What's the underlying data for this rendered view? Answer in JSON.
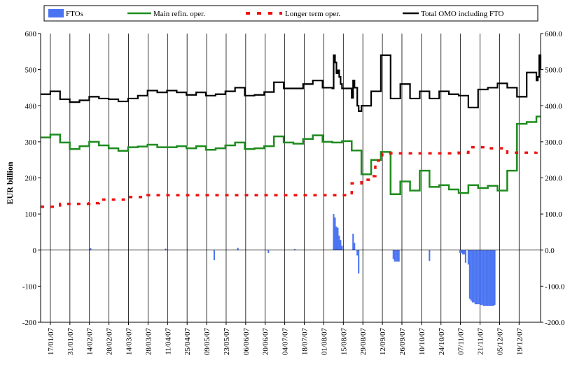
{
  "chart_data": {
    "type": "line",
    "ylabel": "EUR billion",
    "ylim": [
      -200,
      600
    ],
    "y_ticks_left": [
      "-200",
      "-100",
      "0",
      "100",
      "200",
      "300",
      "400",
      "500",
      "600"
    ],
    "y_ticks_right": [
      "-200.0",
      "-100.0",
      "0.0",
      "100.0",
      "200.0",
      "300.0",
      "400.0",
      "500.0",
      "600.0"
    ],
    "x_tick_labels": [
      "17/01/07",
      "31/01/07",
      "14/02/07",
      "28/02/07",
      "14/03/07",
      "28/03/07",
      "11/04/07",
      "25/04/07",
      "09/05/07",
      "23/05/07",
      "06/06/07",
      "20/06/07",
      "04/07/07",
      "18/07/07",
      "01/08/07",
      "15/08/07",
      "29/08/07",
      "12/09/07",
      "26/09/07",
      "10/10/07",
      "24/10/07",
      "07/11/07",
      "21/11/07",
      "05/12/07",
      "19/12/07"
    ],
    "grid": "vertical",
    "legend_position": "top",
    "colors": {
      "FTOs": "#4a74f2",
      "Main refin. oper.": "#1e8c1e",
      "Longer term oper.": "#ee1111",
      "Total OMO including FTO": "#000000"
    },
    "series": [
      {
        "name": "FTOs",
        "style": "bar",
        "points": [
          [
            36,
            5
          ],
          [
            90,
            4
          ],
          [
            125,
            -28
          ],
          [
            142,
            6
          ],
          [
            164,
            -8
          ],
          [
            183,
            3
          ],
          [
            211,
            100
          ],
          [
            212,
            90
          ],
          [
            213,
            65
          ],
          [
            214,
            62
          ],
          [
            215,
            40
          ],
          [
            216,
            28
          ],
          [
            217,
            12
          ],
          [
            225,
            45
          ],
          [
            226,
            20
          ],
          [
            228,
            -15
          ],
          [
            229,
            -65
          ],
          [
            254,
            -25
          ],
          [
            255,
            -32
          ],
          [
            256,
            -32
          ],
          [
            257,
            -32
          ],
          [
            258,
            -32
          ],
          [
            280,
            -30
          ],
          [
            302,
            -8
          ],
          [
            303,
            -8
          ],
          [
            304,
            -12
          ],
          [
            305,
            -12
          ],
          [
            306,
            -35
          ],
          [
            308,
            -40
          ],
          [
            309,
            -135
          ],
          [
            310,
            -140
          ],
          [
            311,
            -145
          ],
          [
            312,
            -145
          ],
          [
            313,
            -150
          ],
          [
            314,
            -150
          ],
          [
            315,
            -150
          ],
          [
            316,
            -150
          ],
          [
            317,
            -152
          ],
          [
            318,
            -152
          ],
          [
            319,
            -155
          ],
          [
            320,
            -155
          ],
          [
            321,
            -155
          ],
          [
            322,
            -155
          ],
          [
            323,
            -155
          ],
          [
            324,
            -155
          ],
          [
            325,
            -155
          ],
          [
            326,
            -155
          ],
          [
            327,
            -152
          ]
        ]
      },
      {
        "name": "Main refin. oper.",
        "style": "step",
        "points": [
          [
            0,
            312
          ],
          [
            7,
            320
          ],
          [
            14,
            298
          ],
          [
            21,
            280
          ],
          [
            28,
            288
          ],
          [
            35,
            300
          ],
          [
            42,
            290
          ],
          [
            49,
            282
          ],
          [
            56,
            275
          ],
          [
            63,
            285
          ],
          [
            70,
            287
          ],
          [
            77,
            292
          ],
          [
            84,
            285
          ],
          [
            91,
            285
          ],
          [
            98,
            288
          ],
          [
            105,
            282
          ],
          [
            112,
            288
          ],
          [
            119,
            278
          ],
          [
            126,
            282
          ],
          [
            133,
            290
          ],
          [
            140,
            298
          ],
          [
            147,
            280
          ],
          [
            154,
            282
          ],
          [
            161,
            288
          ],
          [
            168,
            315
          ],
          [
            175,
            298
          ],
          [
            182,
            295
          ],
          [
            189,
            308
          ],
          [
            196,
            318
          ],
          [
            203,
            300
          ],
          [
            210,
            298
          ],
          [
            217,
            302
          ],
          [
            224,
            276
          ],
          [
            231,
            210
          ],
          [
            238,
            250
          ],
          [
            245,
            272
          ],
          [
            252,
            155
          ],
          [
            259,
            190
          ],
          [
            266,
            165
          ],
          [
            273,
            220
          ],
          [
            280,
            175
          ],
          [
            287,
            180
          ],
          [
            294,
            168
          ],
          [
            301,
            158
          ],
          [
            308,
            180
          ],
          [
            315,
            172
          ],
          [
            322,
            178
          ],
          [
            329,
            165
          ],
          [
            336,
            220
          ],
          [
            343,
            350
          ],
          [
            350,
            355
          ],
          [
            357,
            370
          ],
          [
            360,
            370
          ]
        ]
      },
      {
        "name": "Longer term oper.",
        "style": "step-dashed",
        "points": [
          [
            0,
            120
          ],
          [
            14,
            128
          ],
          [
            35,
            130
          ],
          [
            42,
            140
          ],
          [
            56,
            140
          ],
          [
            63,
            147
          ],
          [
            77,
            152
          ],
          [
            91,
            152
          ],
          [
            105,
            152
          ],
          [
            119,
            152
          ],
          [
            140,
            152
          ],
          [
            161,
            152
          ],
          [
            182,
            152
          ],
          [
            203,
            152
          ],
          [
            217,
            152
          ],
          [
            224,
            185
          ],
          [
            231,
            195
          ],
          [
            238,
            205
          ],
          [
            241,
            248
          ],
          [
            246,
            268
          ],
          [
            259,
            268
          ],
          [
            273,
            268
          ],
          [
            287,
            268
          ],
          [
            301,
            270
          ],
          [
            308,
            285
          ],
          [
            322,
            282
          ],
          [
            336,
            270
          ],
          [
            350,
            270
          ],
          [
            357,
            272
          ]
        ]
      },
      {
        "name": "Total OMO including FTO",
        "style": "step",
        "points": [
          [
            0,
            432
          ],
          [
            7,
            440
          ],
          [
            14,
            418
          ],
          [
            21,
            410
          ],
          [
            28,
            415
          ],
          [
            35,
            425
          ],
          [
            42,
            420
          ],
          [
            49,
            418
          ],
          [
            56,
            412
          ],
          [
            63,
            420
          ],
          [
            70,
            428
          ],
          [
            77,
            442
          ],
          [
            84,
            437
          ],
          [
            91,
            442
          ],
          [
            98,
            437
          ],
          [
            105,
            430
          ],
          [
            112,
            437
          ],
          [
            119,
            428
          ],
          [
            126,
            432
          ],
          [
            133,
            440
          ],
          [
            140,
            450
          ],
          [
            147,
            428
          ],
          [
            154,
            430
          ],
          [
            161,
            438
          ],
          [
            168,
            465
          ],
          [
            175,
            448
          ],
          [
            182,
            448
          ],
          [
            189,
            460
          ],
          [
            196,
            470
          ],
          [
            203,
            450
          ],
          [
            210,
            448
          ],
          [
            211,
            540
          ],
          [
            212,
            520
          ],
          [
            213,
            490
          ],
          [
            214,
            498
          ],
          [
            215,
            480
          ],
          [
            216,
            460
          ],
          [
            217,
            448
          ],
          [
            224,
            422
          ],
          [
            225,
            470
          ],
          [
            226,
            450
          ],
          [
            228,
            400
          ],
          [
            229,
            385
          ],
          [
            231,
            400
          ],
          [
            238,
            440
          ],
          [
            245,
            540
          ],
          [
            252,
            420
          ],
          [
            259,
            460
          ],
          [
            266,
            420
          ],
          [
            273,
            440
          ],
          [
            280,
            420
          ],
          [
            287,
            440
          ],
          [
            294,
            432
          ],
          [
            301,
            428
          ],
          [
            308,
            395
          ],
          [
            315,
            445
          ],
          [
            322,
            450
          ],
          [
            329,
            462
          ],
          [
            336,
            450
          ],
          [
            343,
            425
          ],
          [
            350,
            492
          ],
          [
            357,
            470
          ],
          [
            358,
            480
          ],
          [
            359,
            540
          ],
          [
            360,
            500
          ]
        ]
      }
    ]
  }
}
